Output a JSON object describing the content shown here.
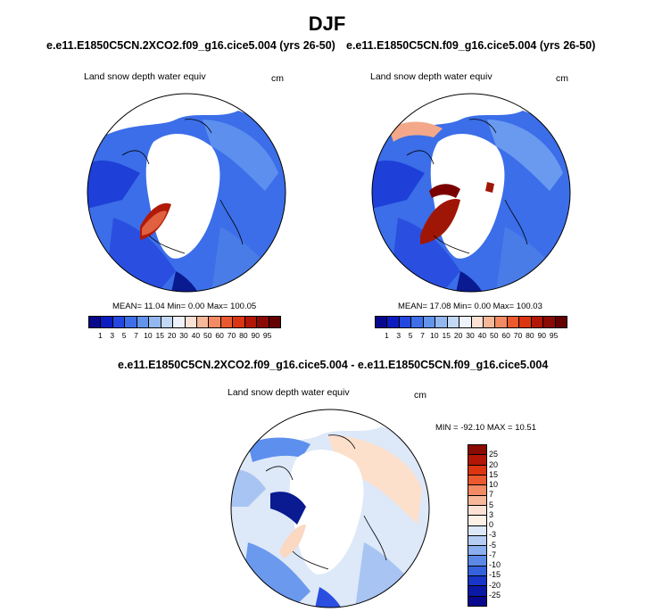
{
  "title": "DJF",
  "panels": {
    "left": {
      "case": "e.e11.E1850C5CN.2XCO2.f09_g16.cice5.004 (yrs 26-50)",
      "var": "Land snow depth water equiv",
      "units": "cm",
      "stats": "MEAN=  11.04  Min=   0.00  Max= 100.05"
    },
    "right": {
      "case": "e.e11.E1850C5CN.f09_g16.cice5.004 (yrs 26-50)",
      "var": "Land snow depth water equiv",
      "units": "cm",
      "stats": "MEAN=  17.08  Min=   0.00  Max= 100.03"
    },
    "diff": {
      "case": "e.e11.E1850C5CN.2XCO2.f09_g16.cice5.004 - e.e11.E1850C5CN.f09_g16.cice5.004",
      "var": "Land snow depth water equiv",
      "units": "cm",
      "stats": "MIN = -92.10 MAX =  10.51"
    }
  },
  "colorbars": {
    "abs": {
      "labels": [
        "1",
        "3",
        "5",
        "7",
        "10",
        "15",
        "20",
        "30",
        "40",
        "50",
        "60",
        "70",
        "80",
        "90",
        "95"
      ],
      "colors": [
        "#08088c",
        "#0b1cc0",
        "#2348e0",
        "#3e6fe8",
        "#6394ec",
        "#93b8f0",
        "#c2d8f5",
        "#eef2fb",
        "#fbe2d4",
        "#f7b89a",
        "#f28a63",
        "#ea5a2e",
        "#dc3512",
        "#b11606",
        "#8a0a04",
        "#640000"
      ]
    },
    "diff": {
      "labels": [
        "25",
        "20",
        "15",
        "10",
        "7",
        "5",
        "3",
        "0",
        "-3",
        "-5",
        "-7",
        "-10",
        "-15",
        "-20",
        "-25"
      ],
      "colors": [
        "#8a0a04",
        "#b11606",
        "#dc3512",
        "#ea5a2e",
        "#f28a63",
        "#f7b89a",
        "#fbe2d4",
        "#fdf0e6",
        "#dce8f8",
        "#b6cdf3",
        "#8aaeee",
        "#5c88e6",
        "#3562dc",
        "#1836c8",
        "#0a1aa4",
        "#08088c"
      ]
    }
  }
}
